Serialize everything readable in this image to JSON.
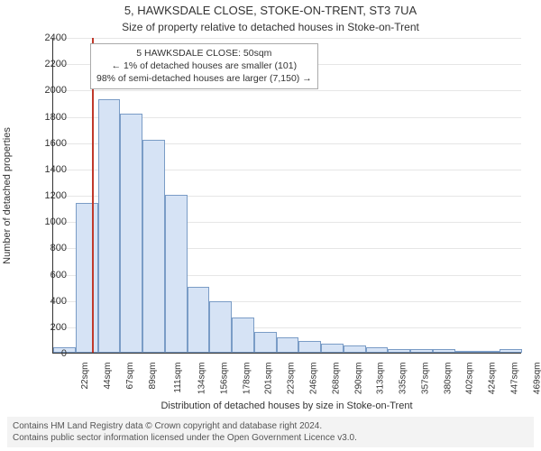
{
  "colors": {
    "background": "#ffffff",
    "grid": "#e6e6e6",
    "bar_fill": "#d6e3f5",
    "bar_border": "#7a9cc6",
    "marker": "#c0392b",
    "axis": "#333333",
    "caption_bg": "#f3f3f3"
  },
  "title": {
    "main": "5, HAWKSDALE CLOSE, STOKE-ON-TRENT, ST3 7UA",
    "sub": "Size of property relative to detached houses in Stoke-on-Trent",
    "main_fontsize": 13,
    "sub_fontsize": 12
  },
  "axes": {
    "ylabel": "Number of detached properties",
    "xlabel": "Distribution of detached houses by size in Stoke-on-Trent",
    "ylim": [
      0,
      2400
    ],
    "ytick_step": 200,
    "label_fontsize": 11,
    "xtick_fontsize": 10,
    "ytick_fontsize": 11,
    "x_rotation_deg": -90
  },
  "chart": {
    "type": "histogram",
    "x_labels": [
      "22sqm",
      "44sqm",
      "67sqm",
      "89sqm",
      "111sqm",
      "134sqm",
      "156sqm",
      "178sqm",
      "201sqm",
      "223sqm",
      "246sqm",
      "268sqm",
      "290sqm",
      "313sqm",
      "335sqm",
      "357sqm",
      "380sqm",
      "402sqm",
      "424sqm",
      "447sqm",
      "469sqm"
    ],
    "values": [
      40,
      1140,
      1930,
      1820,
      1620,
      1200,
      500,
      390,
      270,
      160,
      120,
      90,
      70,
      55,
      40,
      30,
      30,
      25,
      10,
      10,
      30
    ],
    "bar_width_ratio": 1.0,
    "marker_x_sqm": 50,
    "x_range_sqm": [
      11,
      480
    ]
  },
  "annotation": {
    "line1": "5 HAWKSDALE CLOSE: 50sqm",
    "line2": "← 1% of detached houses are smaller (101)",
    "line3": "98% of semi-detached houses are larger (7,150) →",
    "box_border": "#aaaaaa",
    "box_bg": "#ffffff",
    "fontsize": 10.5
  },
  "caption": {
    "line1": "Contains HM Land Registry data © Crown copyright and database right 2024.",
    "line2": "Contains public sector information licensed under the Open Government Licence v3.0.",
    "fontsize": 10
  }
}
